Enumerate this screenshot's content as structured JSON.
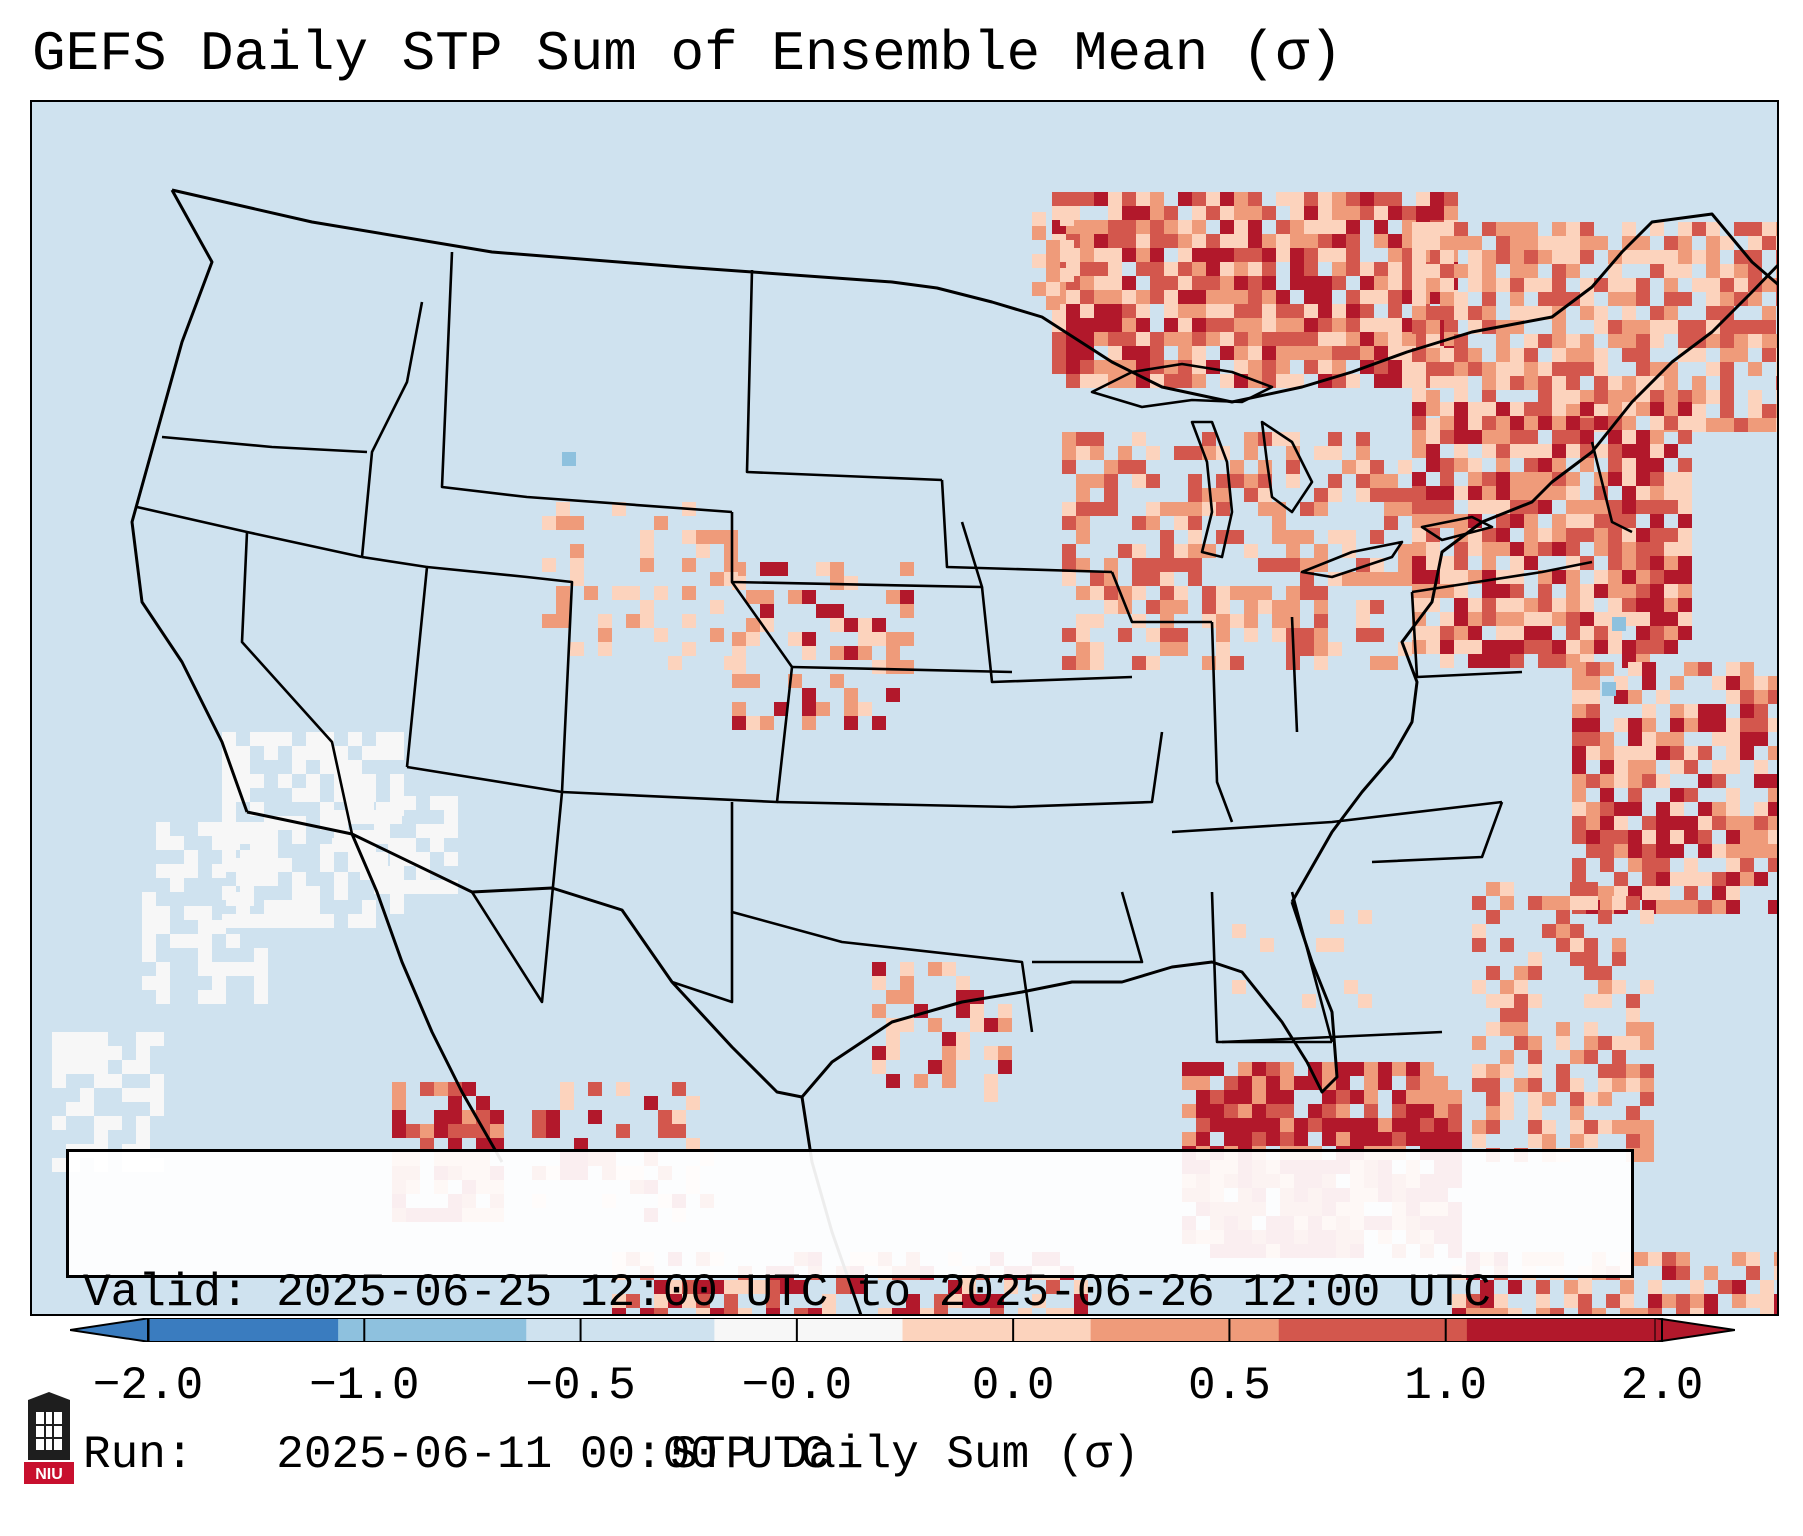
{
  "title": "GEFS Daily STP Sum of Ensemble Mean (σ)",
  "info": {
    "valid_line": "Valid: 2025-06-25 12:00 UTC to 2025-06-26 12:00 UTC",
    "run_line": "Run:   2025-06-11 00:00 UTC"
  },
  "colorbar": {
    "label": "STP Daily Sum (σ)",
    "ticks": [
      "−2.0",
      "−1.0",
      "−0.5",
      "−0.0",
      "0.0",
      "0.5",
      "1.0",
      "2.0"
    ],
    "colors": [
      "#3a7cbf",
      "#8ec1de",
      "#cfe2ef",
      "#f7f7f7",
      "#fcd3bd",
      "#ef9b7a",
      "#d3574d",
      "#b2182b"
    ]
  },
  "logo": {
    "text": "NIU",
    "color": "#c8102e"
  },
  "map": {
    "background_color": "#cfe2ef",
    "colors": {
      "neutral": "#f7f7f7",
      "light_red": "#fcd3bd",
      "mid_red": "#ef9b7a",
      "red": "#d3574d",
      "dark_red": "#b2182b",
      "light_blue": "#8ec1de"
    }
  }
}
